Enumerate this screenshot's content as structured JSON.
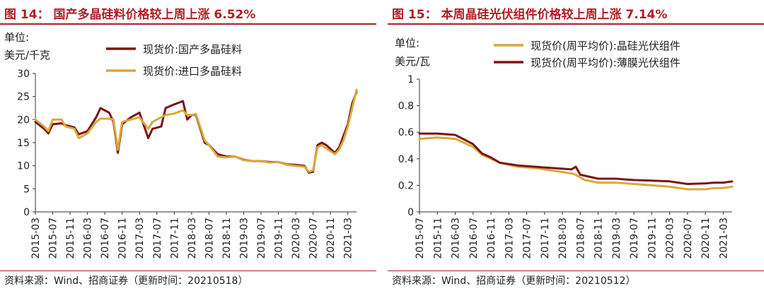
{
  "charts": [
    {
      "title": "图 14：  国产多晶硅料价格较上周上涨 6.52%",
      "unit": [
        "单位:",
        "美元/千克"
      ],
      "source": "资料来源：Wind、招商证券（更新时间：20210518）"
    },
    {
      "title": "图 15：  本周晶硅光伏组件价格较上周上涨 7.14%",
      "unit": [
        "单位:",
        "美元/瓦"
      ],
      "source": "资料来源：Wind、招商证券（更新时间：20210512）"
    }
  ],
  "chart_data": [
    {
      "type": "line",
      "title": "图 14：  国产多晶硅料价格较上周上涨 6.52%",
      "ylabel": "单位: 美元/千克",
      "ylim": [
        0,
        30
      ],
      "yticks": [
        0,
        5,
        10,
        15,
        20,
        25,
        30
      ],
      "xticks": [
        "2015-03",
        "2015-07",
        "2015-11",
        "2016-03",
        "2016-07",
        "2016-11",
        "2017-03",
        "2017-07",
        "2017-11",
        "2018-03",
        "2018-07",
        "2018-11",
        "2019-03",
        "2019-07",
        "2019-11",
        "2020-03",
        "2020-07",
        "2020-11",
        "2021-03"
      ],
      "xlim": [
        "2015-03",
        "2021-05"
      ],
      "grid": false,
      "legend": "top",
      "series": [
        {
          "name": "现货价:国产多晶硅料",
          "color": "#7b1416",
          "points": [
            [
              "2015-03",
              19.5
            ],
            [
              "2015-05",
              18.0
            ],
            [
              "2015-06",
              17.0
            ],
            [
              "2015-07",
              19.0
            ],
            [
              "2015-09",
              19.2
            ],
            [
              "2015-10",
              18.8
            ],
            [
              "2015-12",
              18.3
            ],
            [
              "2016-01",
              16.8
            ],
            [
              "2016-03",
              17.5
            ],
            [
              "2016-05",
              20.5
            ],
            [
              "2016-06",
              22.5
            ],
            [
              "2016-08",
              21.5
            ],
            [
              "2016-09",
              19.5
            ],
            [
              "2016-10",
              12.8
            ],
            [
              "2016-11",
              19.0
            ],
            [
              "2017-01",
              20.5
            ],
            [
              "2017-03",
              21.5
            ],
            [
              "2017-05",
              16.0
            ],
            [
              "2017-06",
              18.0
            ],
            [
              "2017-08",
              18.5
            ],
            [
              "2017-09",
              22.5
            ],
            [
              "2017-11",
              23.3
            ],
            [
              "2018-01",
              24.0
            ],
            [
              "2018-02",
              20.0
            ],
            [
              "2018-03",
              21.0
            ],
            [
              "2018-04",
              21.0
            ],
            [
              "2018-06",
              15.0
            ],
            [
              "2018-07",
              14.5
            ],
            [
              "2018-09",
              12.5
            ],
            [
              "2018-11",
              12.0
            ],
            [
              "2019-01",
              12.0
            ],
            [
              "2019-03",
              11.3
            ],
            [
              "2019-05",
              11.0
            ],
            [
              "2019-07",
              11.0
            ],
            [
              "2019-09",
              10.8
            ],
            [
              "2019-11",
              10.8
            ],
            [
              "2020-01",
              10.3
            ],
            [
              "2020-03",
              10.2
            ],
            [
              "2020-05",
              10.0
            ],
            [
              "2020-06",
              8.5
            ],
            [
              "2020-07",
              8.7
            ],
            [
              "2020-08",
              14.5
            ],
            [
              "2020-09",
              15.0
            ],
            [
              "2020-10",
              14.5
            ],
            [
              "2020-12",
              12.8
            ],
            [
              "2021-01",
              14.0
            ],
            [
              "2021-02",
              16.5
            ],
            [
              "2021-03",
              19.0
            ],
            [
              "2021-04",
              23.5
            ],
            [
              "2021-05",
              26.0
            ]
          ]
        },
        {
          "name": "现货价:进口多晶硅料",
          "color": "#d8a93a",
          "points": [
            [
              "2015-03",
              20.0
            ],
            [
              "2015-05",
              18.5
            ],
            [
              "2015-06",
              17.5
            ],
            [
              "2015-07",
              20.0
            ],
            [
              "2015-09",
              20.0
            ],
            [
              "2015-10",
              18.5
            ],
            [
              "2015-12",
              18.0
            ],
            [
              "2016-01",
              16.0
            ],
            [
              "2016-03",
              17.0
            ],
            [
              "2016-05",
              19.5
            ],
            [
              "2016-06",
              20.2
            ],
            [
              "2016-08",
              20.2
            ],
            [
              "2016-09",
              20.0
            ],
            [
              "2016-10",
              13.5
            ],
            [
              "2016-11",
              19.5
            ],
            [
              "2017-01",
              20.0
            ],
            [
              "2017-03",
              20.5
            ],
            [
              "2017-05",
              18.0
            ],
            [
              "2017-06",
              19.5
            ],
            [
              "2017-08",
              20.5
            ],
            [
              "2017-09",
              21.0
            ],
            [
              "2017-11",
              21.3
            ],
            [
              "2018-01",
              22.0
            ],
            [
              "2018-02",
              21.0
            ],
            [
              "2018-03",
              21.0
            ],
            [
              "2018-04",
              21.2
            ],
            [
              "2018-06",
              15.5
            ],
            [
              "2018-07",
              14.5
            ],
            [
              "2018-09",
              12.0
            ],
            [
              "2018-11",
              11.8
            ],
            [
              "2019-01",
              12.0
            ],
            [
              "2019-03",
              11.2
            ],
            [
              "2019-05",
              11.0
            ],
            [
              "2019-07",
              11.0
            ],
            [
              "2019-09",
              10.7
            ],
            [
              "2019-11",
              10.8
            ],
            [
              "2020-01",
              10.2
            ],
            [
              "2020-03",
              10.0
            ],
            [
              "2020-05",
              9.8
            ],
            [
              "2020-06",
              8.7
            ],
            [
              "2020-07",
              9.0
            ],
            [
              "2020-08",
              14.0
            ],
            [
              "2020-09",
              14.5
            ],
            [
              "2020-10",
              13.8
            ],
            [
              "2020-12",
              12.5
            ],
            [
              "2021-01",
              13.5
            ],
            [
              "2021-02",
              15.5
            ],
            [
              "2021-03",
              18.5
            ],
            [
              "2021-04",
              22.5
            ],
            [
              "2021-05",
              26.5
            ]
          ]
        }
      ]
    },
    {
      "type": "line",
      "title": "图 15：  本周晶硅光伏组件价格较上周上涨 7.14%",
      "ylabel": "单位: 美元/瓦",
      "ylim": [
        0,
        1
      ],
      "yticks": [
        0,
        0.2,
        0.4,
        0.6,
        0.8,
        1
      ],
      "ytick_labels": [
        "0",
        "0.2",
        "0.4",
        "0.6",
        "0.8",
        "1"
      ],
      "xticks": [
        "2015-07",
        "2015-11",
        "2016-03",
        "2016-07",
        "2016-11",
        "2017-03",
        "2017-07",
        "2017-11",
        "2018-03",
        "2018-07",
        "2018-11",
        "2019-03",
        "2019-07",
        "2019-11",
        "2020-03",
        "2020-07",
        "2020-11",
        "2021-03"
      ],
      "xlim": [
        "2015-07",
        "2021-05"
      ],
      "grid": false,
      "legend": "top",
      "series": [
        {
          "name": "现货价(周平均价):晶硅光伏组件",
          "color": "#d8a93a",
          "points": [
            [
              "2015-07",
              0.55
            ],
            [
              "2015-11",
              0.56
            ],
            [
              "2016-03",
              0.55
            ],
            [
              "2016-07",
              0.49
            ],
            [
              "2016-09",
              0.43
            ],
            [
              "2016-11",
              0.4
            ],
            [
              "2017-01",
              0.37
            ],
            [
              "2017-05",
              0.34
            ],
            [
              "2017-09",
              0.33
            ],
            [
              "2018-01",
              0.31
            ],
            [
              "2018-05",
              0.29
            ],
            [
              "2018-06",
              0.28
            ],
            [
              "2018-08",
              0.24
            ],
            [
              "2018-11",
              0.22
            ],
            [
              "2019-03",
              0.22
            ],
            [
              "2019-07",
              0.21
            ],
            [
              "2019-11",
              0.2
            ],
            [
              "2020-03",
              0.19
            ],
            [
              "2020-07",
              0.17
            ],
            [
              "2020-11",
              0.17
            ],
            [
              "2021-01",
              0.18
            ],
            [
              "2021-03",
              0.18
            ],
            [
              "2021-05",
              0.19
            ]
          ]
        },
        {
          "name": "现货价(周平均价):薄膜光伏组件",
          "color": "#7b1416",
          "points": [
            [
              "2015-07",
              0.59
            ],
            [
              "2015-11",
              0.59
            ],
            [
              "2016-03",
              0.58
            ],
            [
              "2016-07",
              0.51
            ],
            [
              "2016-09",
              0.44
            ],
            [
              "2016-11",
              0.41
            ],
            [
              "2017-01",
              0.37
            ],
            [
              "2017-05",
              0.35
            ],
            [
              "2017-09",
              0.34
            ],
            [
              "2018-01",
              0.33
            ],
            [
              "2018-05",
              0.32
            ],
            [
              "2018-06",
              0.34
            ],
            [
              "2018-07",
              0.28
            ],
            [
              "2018-11",
              0.25
            ],
            [
              "2019-03",
              0.25
            ],
            [
              "2019-07",
              0.24
            ],
            [
              "2019-11",
              0.235
            ],
            [
              "2020-03",
              0.23
            ],
            [
              "2020-07",
              0.21
            ],
            [
              "2020-11",
              0.215
            ],
            [
              "2021-01",
              0.22
            ],
            [
              "2021-03",
              0.22
            ],
            [
              "2021-05",
              0.23
            ]
          ]
        }
      ]
    }
  ]
}
